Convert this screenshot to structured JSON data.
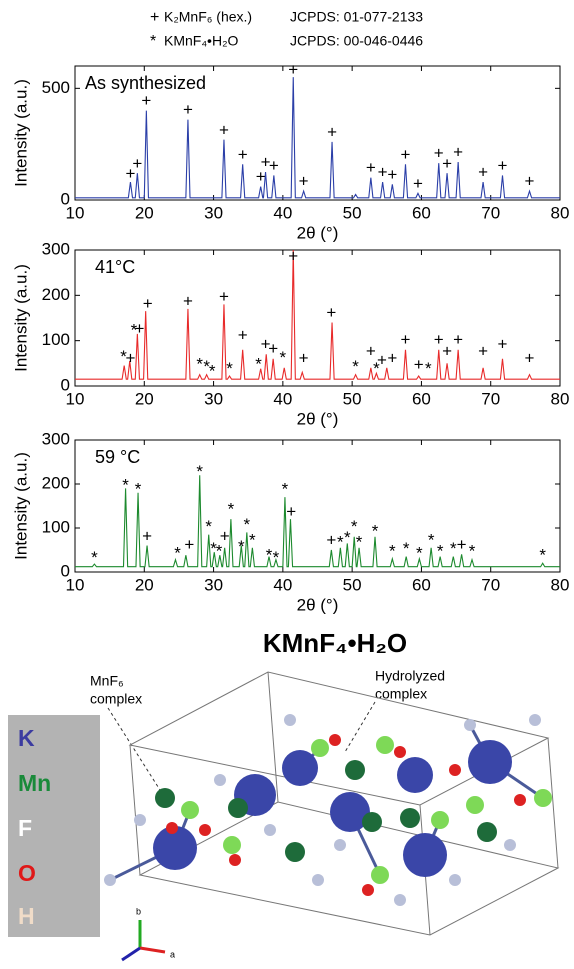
{
  "legend": [
    {
      "symbol": "+",
      "name": "K₂MnF₆ (hex.)",
      "ref": "JCPDS: 01-077-2133"
    },
    {
      "symbol": "*",
      "name": "KMnF₄•H₂O",
      "ref": "JCPDS: 00-046-0446"
    }
  ],
  "chart_data": [
    {
      "type": "line",
      "label": "As synthesized",
      "color": "#2b3fa8",
      "xlabel": "2θ (°)",
      "ylabel": "Intensity (a.u.)",
      "xlim": [
        10,
        80
      ],
      "xticks": [
        10,
        20,
        30,
        40,
        50,
        60,
        70,
        80
      ],
      "ylim": [
        0,
        600
      ],
      "yticks": [
        0,
        500
      ],
      "x": [
        10,
        17.7,
        18,
        18.3,
        18.7,
        19,
        19.3,
        20,
        20.3,
        20.6,
        26,
        26.3,
        26.6,
        31.2,
        31.5,
        31.8,
        33.9,
        34.2,
        34.5,
        36.5,
        36.8,
        37.1,
        37.2,
        37.5,
        37.8,
        38.4,
        38.7,
        39,
        41.2,
        41.5,
        41.8,
        42.7,
        43,
        43.3,
        46.8,
        47.1,
        47.4,
        50.2,
        50.5,
        50.8,
        52.4,
        52.7,
        53,
        54.1,
        54.4,
        54.7,
        55.5,
        55.8,
        56.1,
        57.4,
        57.7,
        58,
        59.2,
        59.5,
        59.8,
        62.2,
        62.5,
        62.8,
        63.4,
        63.7,
        64,
        65,
        65.3,
        65.6,
        68.6,
        68.9,
        69.2,
        71.4,
        71.7,
        72,
        75.3,
        75.6,
        75.9,
        80
      ],
      "values": [
        10,
        10,
        80,
        10,
        10,
        120,
        10,
        10,
        400,
        10,
        10,
        360,
        10,
        10,
        270,
        10,
        10,
        160,
        10,
        10,
        60,
        10,
        10,
        125,
        10,
        10,
        110,
        10,
        10,
        550,
        10,
        10,
        40,
        10,
        10,
        260,
        10,
        10,
        25,
        10,
        10,
        100,
        10,
        10,
        80,
        10,
        10,
        70,
        10,
        10,
        160,
        10,
        10,
        30,
        10,
        10,
        165,
        10,
        10,
        120,
        10,
        10,
        170,
        10,
        10,
        80,
        10,
        10,
        110,
        10,
        10,
        40,
        10,
        10
      ],
      "annotations": [
        {
          "x": 18,
          "y": 115,
          "text": "+"
        },
        {
          "x": 19,
          "y": 160,
          "text": "+"
        },
        {
          "x": 20.3,
          "y": 440,
          "text": "+"
        },
        {
          "x": 26.3,
          "y": 400,
          "text": "+"
        },
        {
          "x": 31.5,
          "y": 310,
          "text": "+"
        },
        {
          "x": 34.2,
          "y": 200,
          "text": "+"
        },
        {
          "x": 36.8,
          "y": 100,
          "text": "+"
        },
        {
          "x": 37.5,
          "y": 165,
          "text": "+"
        },
        {
          "x": 38.7,
          "y": 150,
          "text": "+"
        },
        {
          "x": 41.5,
          "y": 580,
          "text": "+"
        },
        {
          "x": 43,
          "y": 80,
          "text": "+"
        },
        {
          "x": 47.1,
          "y": 300,
          "text": "+"
        },
        {
          "x": 52.7,
          "y": 140,
          "text": "+"
        },
        {
          "x": 54.4,
          "y": 120,
          "text": "+"
        },
        {
          "x": 55.8,
          "y": 110,
          "text": "+"
        },
        {
          "x": 57.7,
          "y": 200,
          "text": "+"
        },
        {
          "x": 59.5,
          "y": 70,
          "text": "+"
        },
        {
          "x": 62.5,
          "y": 205,
          "text": "+"
        },
        {
          "x": 63.7,
          "y": 160,
          "text": "+"
        },
        {
          "x": 65.3,
          "y": 210,
          "text": "+"
        },
        {
          "x": 68.9,
          "y": 120,
          "text": "+"
        },
        {
          "x": 71.7,
          "y": 150,
          "text": "+"
        },
        {
          "x": 75.6,
          "y": 80,
          "text": "+"
        }
      ]
    },
    {
      "type": "line",
      "label": "41°C",
      "color": "#e82a2a",
      "xlabel": "2θ (°)",
      "ylabel": "Intensity (a.u.)",
      "xlim": [
        10,
        80
      ],
      "xticks": [
        10,
        20,
        30,
        40,
        50,
        60,
        70,
        80
      ],
      "ylim": [
        0,
        300
      ],
      "yticks": [
        0,
        100,
        200,
        300
      ],
      "x": [
        10,
        16.8,
        17.1,
        17.4,
        17.6,
        17.9,
        18.2,
        18.7,
        19,
        19.3,
        19.9,
        20.2,
        20.5,
        26,
        26.3,
        26.6,
        27.7,
        28,
        28.3,
        28.7,
        29,
        29.3,
        31.2,
        31.5,
        31.8,
        32,
        32.3,
        32.6,
        33.9,
        34.2,
        34.5,
        36.5,
        36.8,
        37.1,
        37.3,
        37.6,
        37.9,
        38.3,
        38.6,
        38.9,
        39.9,
        40.2,
        40.5,
        41.2,
        41.5,
        41.8,
        42.5,
        42.8,
        43.1,
        46.8,
        47.1,
        47.4,
        50.2,
        50.5,
        50.8,
        52.4,
        52.7,
        53,
        53.2,
        53.5,
        53.8,
        54.7,
        55,
        55.3,
        57.4,
        57.7,
        58,
        59.3,
        59.6,
        59.9,
        62.2,
        62.5,
        62.8,
        63.4,
        63.7,
        64,
        65,
        65.3,
        65.6,
        68.6,
        68.9,
        69.2,
        71.4,
        71.7,
        72,
        75.3,
        75.6,
        75.9,
        80
      ],
      "values": [
        15,
        15,
        45,
        15,
        15,
        55,
        15,
        15,
        115,
        15,
        15,
        165,
        15,
        15,
        170,
        15,
        15,
        25,
        15,
        15,
        25,
        15,
        15,
        180,
        15,
        15,
        22,
        15,
        15,
        80,
        15,
        15,
        38,
        15,
        15,
        70,
        15,
        15,
        60,
        15,
        15,
        40,
        15,
        15,
        300,
        15,
        15,
        30,
        15,
        15,
        140,
        15,
        15,
        25,
        15,
        15,
        40,
        15,
        15,
        28,
        15,
        15,
        40,
        15,
        15,
        80,
        15,
        15,
        22,
        15,
        15,
        80,
        15,
        15,
        50,
        15,
        15,
        80,
        15,
        15,
        40,
        15,
        15,
        60,
        15,
        15,
        25,
        15,
        15
      ],
      "annotations": [
        {
          "x": 17,
          "y": 72,
          "text": "*"
        },
        {
          "x": 18,
          "y": 60,
          "text": "+"
        },
        {
          "x": 18.5,
          "y": 130,
          "text": "*"
        },
        {
          "x": 19.3,
          "y": 125,
          "text": "+"
        },
        {
          "x": 20.5,
          "y": 180,
          "text": "+"
        },
        {
          "x": 26.3,
          "y": 185,
          "text": "+"
        },
        {
          "x": 28,
          "y": 55,
          "text": "*"
        },
        {
          "x": 29,
          "y": 50,
          "text": "*"
        },
        {
          "x": 29.8,
          "y": 40,
          "text": "*"
        },
        {
          "x": 31.5,
          "y": 195,
          "text": "+"
        },
        {
          "x": 32.3,
          "y": 45,
          "text": "*"
        },
        {
          "x": 34.2,
          "y": 110,
          "text": "+"
        },
        {
          "x": 36.5,
          "y": 55,
          "text": "*"
        },
        {
          "x": 37.5,
          "y": 90,
          "text": "+"
        },
        {
          "x": 38.6,
          "y": 80,
          "text": "+"
        },
        {
          "x": 40,
          "y": 70,
          "text": "*"
        },
        {
          "x": 41.5,
          "y": 285,
          "text": "+"
        },
        {
          "x": 43,
          "y": 60,
          "text": "+"
        },
        {
          "x": 47,
          "y": 160,
          "text": "+"
        },
        {
          "x": 50.5,
          "y": 50,
          "text": "*"
        },
        {
          "x": 52.7,
          "y": 75,
          "text": "+"
        },
        {
          "x": 53.5,
          "y": 45,
          "text": "*"
        },
        {
          "x": 54.3,
          "y": 55,
          "text": "+"
        },
        {
          "x": 55.8,
          "y": 60,
          "text": "+"
        },
        {
          "x": 57.7,
          "y": 100,
          "text": "+"
        },
        {
          "x": 59.6,
          "y": 45,
          "text": "+"
        },
        {
          "x": 61,
          "y": 45,
          "text": "*"
        },
        {
          "x": 62.5,
          "y": 100,
          "text": "+"
        },
        {
          "x": 63.7,
          "y": 75,
          "text": "+"
        },
        {
          "x": 65.3,
          "y": 100,
          "text": "+"
        },
        {
          "x": 68.9,
          "y": 75,
          "text": "+"
        },
        {
          "x": 71.7,
          "y": 90,
          "text": "+"
        },
        {
          "x": 75.6,
          "y": 60,
          "text": "+"
        }
      ]
    },
    {
      "type": "line",
      "label": "59 °C",
      "color": "#1d8a2e",
      "xlabel": "2θ (°)",
      "ylabel": "Intensity (a.u.)",
      "xlim": [
        10,
        80
      ],
      "xticks": [
        10,
        20,
        30,
        40,
        50,
        60,
        70,
        80
      ],
      "ylim": [
        0,
        300
      ],
      "yticks": [
        0,
        100,
        200,
        300
      ],
      "x": [
        10,
        12.5,
        12.8,
        13.1,
        17,
        17.3,
        17.6,
        18.8,
        19.1,
        19.4,
        20.1,
        20.4,
        20.7,
        24.2,
        24.5,
        24.8,
        25.7,
        26,
        26.3,
        27.7,
        28,
        28.3,
        29,
        29.3,
        29.6,
        29.8,
        30.1,
        30.4,
        30.6,
        30.9,
        31.2,
        31.3,
        31.6,
        31.9,
        32.2,
        32.5,
        32.8,
        33.7,
        34,
        34.3,
        34.5,
        34.8,
        35.1,
        35.3,
        35.6,
        35.9,
        37.7,
        38,
        38.3,
        38.7,
        39,
        39.3,
        40,
        40.3,
        40.6,
        40.8,
        41.1,
        41.4,
        46.7,
        47,
        47.3,
        48,
        48.3,
        48.6,
        49,
        49.3,
        49.6,
        50,
        50.3,
        50.6,
        50.7,
        51,
        51.3,
        53,
        53.3,
        53.6,
        55.5,
        55.8,
        56.1,
        57.5,
        57.8,
        58.1,
        59.4,
        59.7,
        60,
        61.1,
        61.4,
        61.7,
        62.4,
        62.7,
        63,
        64.3,
        64.6,
        64.9,
        65.5,
        65.8,
        66.1,
        67,
        67.3,
        67.6,
        77.2,
        77.5,
        77.8,
        80
      ],
      "values": [
        12,
        12,
        18,
        12,
        12,
        190,
        12,
        12,
        180,
        12,
        12,
        60,
        12,
        12,
        28,
        12,
        12,
        38,
        12,
        12,
        220,
        12,
        12,
        85,
        12,
        12,
        45,
        12,
        12,
        38,
        12,
        12,
        55,
        12,
        12,
        120,
        12,
        12,
        60,
        12,
        12,
        90,
        12,
        12,
        55,
        12,
        12,
        35,
        12,
        12,
        28,
        12,
        12,
        170,
        12,
        12,
        120,
        12,
        12,
        50,
        12,
        12,
        55,
        12,
        12,
        65,
        12,
        12,
        80,
        12,
        12,
        55,
        12,
        12,
        80,
        12,
        12,
        30,
        12,
        12,
        35,
        12,
        12,
        30,
        12,
        12,
        55,
        12,
        12,
        35,
        12,
        12,
        35,
        12,
        12,
        40,
        12,
        12,
        28,
        12,
        12,
        20,
        12,
        12
      ],
      "annotations": [
        {
          "x": 12.8,
          "y": 40,
          "text": "*"
        },
        {
          "x": 17.3,
          "y": 205,
          "text": "*"
        },
        {
          "x": 19.1,
          "y": 195,
          "text": "*"
        },
        {
          "x": 20.4,
          "y": 80,
          "text": "+"
        },
        {
          "x": 24.8,
          "y": 50,
          "text": "*"
        },
        {
          "x": 26.5,
          "y": 60,
          "text": "+"
        },
        {
          "x": 28,
          "y": 235,
          "text": "*"
        },
        {
          "x": 29.3,
          "y": 110,
          "text": "*"
        },
        {
          "x": 30,
          "y": 60,
          "text": "*"
        },
        {
          "x": 30.8,
          "y": 55,
          "text": "*"
        },
        {
          "x": 31.6,
          "y": 80,
          "text": "+"
        },
        {
          "x": 32.5,
          "y": 150,
          "text": "*"
        },
        {
          "x": 34,
          "y": 65,
          "text": "*"
        },
        {
          "x": 34.8,
          "y": 115,
          "text": "*"
        },
        {
          "x": 35.6,
          "y": 80,
          "text": "*"
        },
        {
          "x": 38,
          "y": 45,
          "text": "*"
        },
        {
          "x": 39,
          "y": 40,
          "text": "*"
        },
        {
          "x": 40.3,
          "y": 195,
          "text": "*"
        },
        {
          "x": 41.2,
          "y": 135,
          "text": "+"
        },
        {
          "x": 47,
          "y": 70,
          "text": "+"
        },
        {
          "x": 48.3,
          "y": 75,
          "text": "*"
        },
        {
          "x": 49.3,
          "y": 85,
          "text": "*"
        },
        {
          "x": 50.3,
          "y": 110,
          "text": "*"
        },
        {
          "x": 51,
          "y": 75,
          "text": "*"
        },
        {
          "x": 53.3,
          "y": 100,
          "text": "*"
        },
        {
          "x": 55.8,
          "y": 55,
          "text": "*"
        },
        {
          "x": 57.8,
          "y": 60,
          "text": "*"
        },
        {
          "x": 59.7,
          "y": 50,
          "text": "*"
        },
        {
          "x": 61.4,
          "y": 80,
          "text": "*"
        },
        {
          "x": 62.7,
          "y": 55,
          "text": "*"
        },
        {
          "x": 64.6,
          "y": 60,
          "text": "*"
        },
        {
          "x": 65.8,
          "y": 60,
          "text": "+"
        },
        {
          "x": 67.3,
          "y": 55,
          "text": "*"
        },
        {
          "x": 77.5,
          "y": 45,
          "text": "*"
        }
      ]
    }
  ],
  "structure": {
    "title": "KMnF₄•H₂O",
    "hydrolyzed": [
      "Hydrolyzed",
      "complex"
    ],
    "mnf6": [
      "MnF₆",
      "complex"
    ],
    "elements": [
      "K",
      "Mn",
      "F",
      "O",
      "H"
    ],
    "axes": [
      "b",
      "a"
    ]
  }
}
